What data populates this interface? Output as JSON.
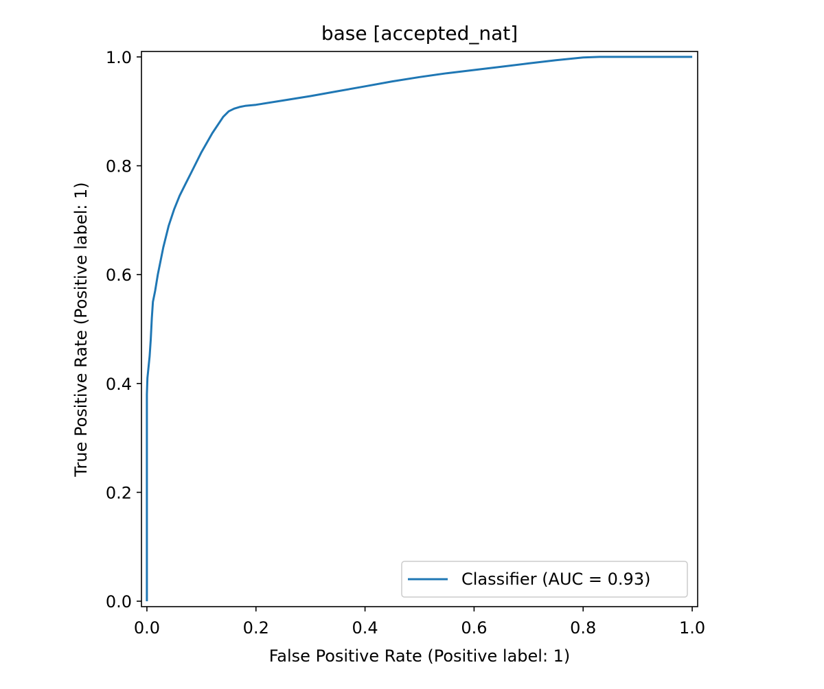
{
  "chart_data": {
    "type": "line",
    "title": "base [accepted_nat]",
    "xlabel": "False Positive Rate (Positive label: 1)",
    "ylabel": "True Positive Rate (Positive label: 1)",
    "xlim": [
      -0.01,
      1.01
    ],
    "ylim": [
      -0.01,
      1.01
    ],
    "xticks": [
      0.0,
      0.2,
      0.4,
      0.6,
      0.8,
      1.0
    ],
    "xtick_labels": [
      "0.0",
      "0.2",
      "0.4",
      "0.6",
      "0.8",
      "1.0"
    ],
    "yticks": [
      0.0,
      0.2,
      0.4,
      0.6,
      0.8,
      1.0
    ],
    "ytick_labels": [
      "0.0",
      "0.2",
      "0.4",
      "0.6",
      "0.8",
      "1.0"
    ],
    "grid": false,
    "legend": {
      "position": "lower-right",
      "entries": [
        "Classifier (AUC = 0.93)"
      ]
    },
    "series": [
      {
        "name": "Classifier (AUC = 0.93)",
        "color": "#1f77b4",
        "x": [
          0.0,
          0.0,
          0.0,
          0.0,
          0.0,
          0.001,
          0.002,
          0.003,
          0.005,
          0.007,
          0.009,
          0.011,
          0.015,
          0.02,
          0.03,
          0.04,
          0.05,
          0.06,
          0.07,
          0.08,
          0.1,
          0.12,
          0.14,
          0.15,
          0.16,
          0.17,
          0.18,
          0.2,
          0.25,
          0.3,
          0.35,
          0.4,
          0.45,
          0.5,
          0.55,
          0.6,
          0.65,
          0.7,
          0.75,
          0.8,
          0.83,
          0.85,
          0.9,
          0.95,
          1.0
        ],
        "y": [
          0.0,
          0.1,
          0.2,
          0.3,
          0.38,
          0.41,
          0.42,
          0.43,
          0.45,
          0.48,
          0.52,
          0.55,
          0.57,
          0.6,
          0.65,
          0.69,
          0.72,
          0.745,
          0.765,
          0.785,
          0.825,
          0.86,
          0.89,
          0.9,
          0.905,
          0.908,
          0.91,
          0.912,
          0.92,
          0.928,
          0.937,
          0.946,
          0.955,
          0.963,
          0.97,
          0.976,
          0.982,
          0.988,
          0.994,
          0.999,
          1.0,
          1.0,
          1.0,
          1.0,
          1.0
        ]
      }
    ]
  }
}
